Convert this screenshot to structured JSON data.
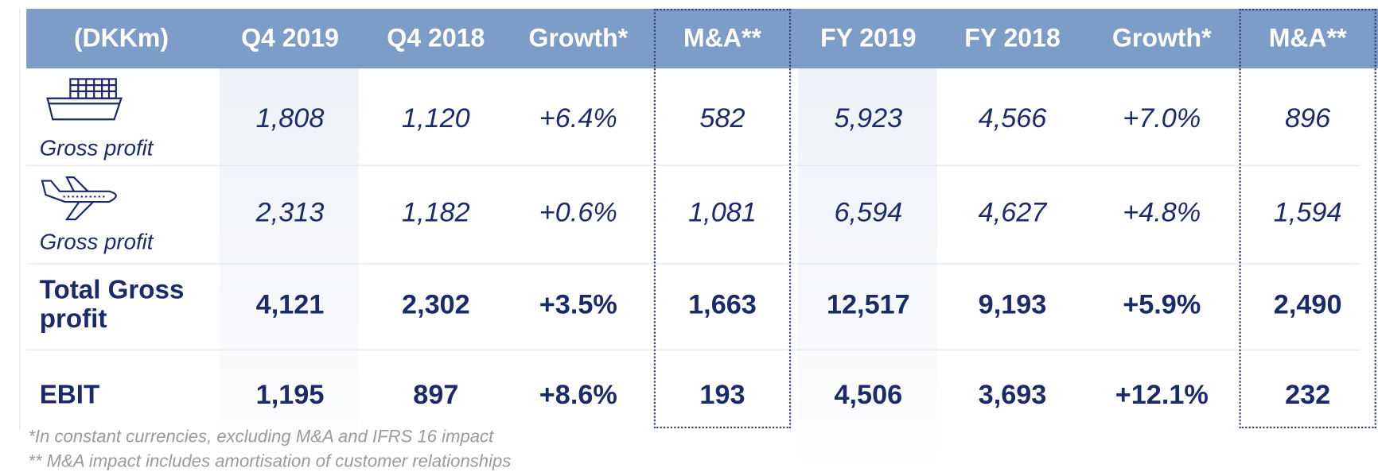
{
  "table": {
    "headers": [
      "(DKKm)",
      "Q4 2019",
      "Q4 2018",
      "Growth*",
      "M&A**",
      "FY 2019",
      "FY 2018",
      "Growth*",
      "M&A**"
    ],
    "rows": [
      {
        "label": "Gross profit",
        "values": [
          "1,808",
          "1,120",
          "+6.4%",
          "582",
          "5,923",
          "4,566",
          "+7.0%",
          "896"
        ]
      },
      {
        "label": "Gross profit",
        "values": [
          "2,313",
          "1,182",
          "+0.6%",
          "1,081",
          "6,594",
          "4,627",
          "+4.8%",
          "1,594"
        ]
      },
      {
        "label": "Total Gross profit",
        "values": [
          "4,121",
          "2,302",
          "+3.5%",
          "1,663",
          "12,517",
          "9,193",
          "+5.9%",
          "2,490"
        ]
      },
      {
        "label": "EBIT",
        "values": [
          "1,195",
          "897",
          "+8.6%",
          "193",
          "4,506",
          "3,693",
          "+12.1%",
          "232"
        ]
      }
    ]
  },
  "footnotes": [
    "*In constant currencies, excluding M&A and IFRS 16 impact",
    "** M&A impact includes amortisation of customer relationships"
  ]
}
